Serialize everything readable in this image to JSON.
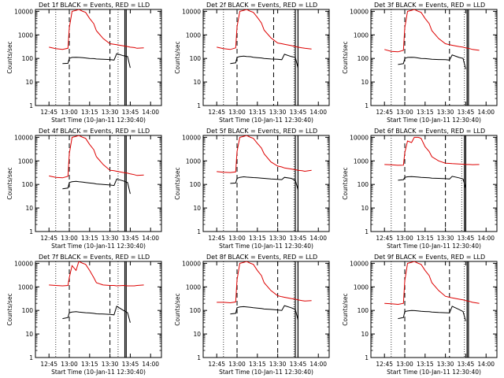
{
  "figure": {
    "start_time_label": "Start Time (10-Jan-11 12:30:40)",
    "ylabel": "Counts/sec",
    "colors": {
      "events": "#000000",
      "lld": "#dd0000",
      "axes": "#000000",
      "background": "#ffffff"
    }
  },
  "chart_data": [
    {
      "type": "line",
      "title": "Det 1f BLACK = Events, RED = LLD",
      "x": [
        "12:45",
        "12:50",
        "12:55",
        "12:59",
        "13:00",
        "13:02",
        "13:05",
        "13:07",
        "13:10",
        "13:12",
        "13:15",
        "13:18",
        "13:20",
        "13:25",
        "13:30",
        "13:33",
        "13:35",
        "13:40",
        "13:43",
        "13:45",
        "13:48",
        "13:50",
        "13:55"
      ],
      "x_ticks": [
        "12:45",
        "13:00",
        "13:15",
        "13:30",
        "13:45",
        "14:00"
      ],
      "xlabel": "Start Time (10-Jan-11 12:30:40)",
      "ylabel": "Counts/sec",
      "ylim": [
        1,
        10000
      ],
      "yscale": "log",
      "y_ticks": [
        "1",
        "10",
        "100",
        "1000",
        "10000"
      ],
      "vlines": {
        "dotted": [
          "12:50",
          "13:36"
        ],
        "dashed": [
          "13:00",
          "13:30"
        ],
        "solid": [
          "13:41",
          "13:42"
        ]
      },
      "series": [
        {
          "name": "Events",
          "color": "#000000",
          "values": [
            null,
            null,
            60,
            62,
            100,
            110,
            112,
            110,
            108,
            105,
            100,
            98,
            95,
            92,
            90,
            85,
            160,
            130,
            120,
            40,
            null,
            null,
            null
          ]
        },
        {
          "name": "LLD",
          "color": "#dd0000",
          "values": [
            300,
            260,
            240,
            270,
            2000,
            10000,
            11000,
            12000,
            10000,
            9000,
            5000,
            3000,
            1500,
            700,
            420,
            400,
            380,
            340,
            320,
            300,
            290,
            270,
            280
          ]
        }
      ]
    },
    {
      "type": "line",
      "title": "Det 2f BLACK = Events, RED = LLD",
      "x": [
        "12:45",
        "12:50",
        "12:55",
        "12:59",
        "13:00",
        "13:02",
        "13:05",
        "13:07",
        "13:10",
        "13:12",
        "13:15",
        "13:18",
        "13:20",
        "13:25",
        "13:30",
        "13:33",
        "13:35",
        "13:40",
        "13:43",
        "13:45",
        "13:48",
        "13:50",
        "13:55"
      ],
      "x_ticks": [
        "12:45",
        "13:00",
        "13:15",
        "13:30",
        "13:45",
        "14:00"
      ],
      "xlabel": "Start Time (10-Jan-11 12:30:40)",
      "ylabel": "Counts/sec",
      "ylim": [
        1,
        10000
      ],
      "yscale": "log",
      "y_ticks": [
        "1",
        "10",
        "100",
        "1000",
        "10000"
      ],
      "vlines": {
        "dotted": [
          "12:50",
          "13:42"
        ],
        "dashed": [
          "13:00",
          "13:27"
        ],
        "solid": [
          "13:43",
          "13:45"
        ]
      },
      "series": [
        {
          "name": "Events",
          "color": "#000000",
          "values": [
            null,
            null,
            60,
            65,
            110,
            120,
            125,
            120,
            118,
            112,
            108,
            105,
            100,
            95,
            92,
            88,
            150,
            120,
            110,
            40,
            null,
            null,
            null
          ]
        },
        {
          "name": "LLD",
          "color": "#dd0000",
          "values": [
            300,
            260,
            240,
            280,
            2200,
            10000,
            11000,
            12000,
            10000,
            9000,
            5500,
            3200,
            1600,
            750,
            450,
            420,
            400,
            350,
            320,
            300,
            280,
            270,
            250
          ]
        }
      ]
    },
    {
      "type": "line",
      "title": "Det 3f BLACK = Events, RED = LLD",
      "x": [
        "12:45",
        "12:50",
        "12:55",
        "12:59",
        "13:00",
        "13:02",
        "13:05",
        "13:07",
        "13:10",
        "13:12",
        "13:15",
        "13:18",
        "13:20",
        "13:25",
        "13:30",
        "13:33",
        "13:35",
        "13:40",
        "13:43",
        "13:45",
        "13:48",
        "13:50",
        "13:55"
      ],
      "x_ticks": [
        "12:45",
        "13:00",
        "13:15",
        "13:30",
        "13:45",
        "14:00"
      ],
      "xlabel": "Start Time (10-Jan-11 12:30:40)",
      "ylabel": "Counts/sec",
      "ylim": [
        1,
        10000
      ],
      "yscale": "log",
      "y_ticks": [
        "1",
        "10",
        "100",
        "1000",
        "10000"
      ],
      "vlines": {
        "dotted": [
          "12:50",
          "13:44"
        ],
        "dashed": [
          "13:00",
          "13:33"
        ],
        "solid": [
          "13:46",
          "13:47"
        ]
      },
      "series": [
        {
          "name": "Events",
          "color": "#000000",
          "values": [
            null,
            null,
            55,
            60,
            100,
            110,
            112,
            110,
            105,
            100,
            98,
            95,
            92,
            90,
            88,
            85,
            140,
            110,
            100,
            35,
            null,
            null,
            null
          ]
        },
        {
          "name": "LLD",
          "color": "#dd0000",
          "values": [
            240,
            200,
            190,
            220,
            2000,
            10000,
            11000,
            12000,
            10000,
            9000,
            5000,
            3000,
            1500,
            700,
            420,
            380,
            360,
            320,
            300,
            280,
            260,
            240,
            220
          ]
        }
      ]
    },
    {
      "type": "line",
      "title": "Det 4f BLACK = Events, RED = LLD",
      "x": [
        "12:45",
        "12:50",
        "12:55",
        "12:59",
        "13:00",
        "13:02",
        "13:05",
        "13:07",
        "13:10",
        "13:12",
        "13:15",
        "13:18",
        "13:20",
        "13:25",
        "13:30",
        "13:33",
        "13:35",
        "13:40",
        "13:43",
        "13:45",
        "13:48",
        "13:50",
        "13:55"
      ],
      "x_ticks": [
        "12:45",
        "13:00",
        "13:15",
        "13:30",
        "13:45",
        "14:00"
      ],
      "xlabel": "Start Time (10-Jan-11 12:30:40)",
      "ylabel": "Counts/sec",
      "ylim": [
        1,
        10000
      ],
      "yscale": "log",
      "y_ticks": [
        "1",
        "10",
        "100",
        "1000",
        "10000"
      ],
      "vlines": {
        "dotted": [
          "12:50",
          "13:36"
        ],
        "dashed": [
          "13:00",
          "13:30"
        ],
        "solid": [
          "13:41",
          "13:42"
        ]
      },
      "series": [
        {
          "name": "Events",
          "color": "#000000",
          "values": [
            null,
            null,
            65,
            70,
            120,
            130,
            135,
            130,
            125,
            120,
            115,
            110,
            105,
            100,
            95,
            90,
            170,
            140,
            120,
            40,
            null,
            null,
            null
          ]
        },
        {
          "name": "LLD",
          "color": "#dd0000",
          "values": [
            230,
            200,
            190,
            220,
            2000,
            10000,
            11000,
            12000,
            10000,
            9000,
            5000,
            3000,
            1500,
            700,
            400,
            380,
            360,
            320,
            300,
            280,
            260,
            240,
            250
          ]
        }
      ]
    },
    {
      "type": "line",
      "title": "Det 5f BLACK = Events, RED = LLD",
      "x": [
        "12:45",
        "12:50",
        "12:55",
        "12:59",
        "13:00",
        "13:02",
        "13:05",
        "13:07",
        "13:10",
        "13:12",
        "13:15",
        "13:18",
        "13:20",
        "13:25",
        "13:30",
        "13:33",
        "13:35",
        "13:40",
        "13:43",
        "13:45",
        "13:48",
        "13:50",
        "13:55"
      ],
      "x_ticks": [
        "12:45",
        "13:00",
        "13:15",
        "13:30",
        "13:45",
        "14:00"
      ],
      "xlabel": "Start Time (10-Jan-11 12:30:40)",
      "ylabel": "Counts/sec",
      "ylim": [
        1,
        10000
      ],
      "yscale": "log",
      "y_ticks": [
        "1",
        "10",
        "100",
        "1000",
        "10000"
      ],
      "vlines": {
        "dotted": [
          "12:50",
          "13:42"
        ],
        "dashed": [
          "13:00",
          "13:30"
        ],
        "solid": [
          "13:43",
          "13:45"
        ]
      },
      "series": [
        {
          "name": "Events",
          "color": "#000000",
          "values": [
            null,
            null,
            110,
            115,
            180,
            200,
            210,
            205,
            200,
            195,
            190,
            185,
            180,
            170,
            165,
            160,
            200,
            180,
            150,
            60,
            null,
            null,
            null
          ]
        },
        {
          "name": "LLD",
          "color": "#dd0000",
          "values": [
            350,
            330,
            320,
            340,
            2500,
            10000,
            11000,
            12000,
            10000,
            9000,
            5500,
            3500,
            2000,
            900,
            600,
            550,
            500,
            450,
            420,
            400,
            380,
            360,
            400
          ]
        }
      ]
    },
    {
      "type": "line",
      "title": "Det 6f BLACK = Events, RED = LLD",
      "x": [
        "12:45",
        "12:50",
        "12:55",
        "12:59",
        "13:00",
        "13:02",
        "13:05",
        "13:07",
        "13:10",
        "13:12",
        "13:15",
        "13:18",
        "13:20",
        "13:25",
        "13:30",
        "13:33",
        "13:35",
        "13:40",
        "13:43",
        "13:45",
        "13:48",
        "13:50",
        "13:55"
      ],
      "x_ticks": [
        "12:45",
        "13:00",
        "13:15",
        "13:30",
        "13:45",
        "14:00"
      ],
      "xlabel": "Start Time (10-Jan-11 12:30:40)",
      "ylabel": "Counts/sec",
      "ylim": [
        1,
        10000
      ],
      "yscale": "log",
      "y_ticks": [
        "1",
        "10",
        "100",
        "1000",
        "10000"
      ],
      "vlines": {
        "dotted": [
          "12:50",
          "13:42"
        ],
        "dashed": [
          "13:00",
          "13:30"
        ],
        "solid": [
          "13:44",
          "13:45"
        ]
      },
      "series": [
        {
          "name": "Events",
          "color": "#000000",
          "values": [
            null,
            null,
            150,
            160,
            200,
            210,
            215,
            210,
            205,
            200,
            195,
            190,
            185,
            180,
            175,
            170,
            220,
            190,
            170,
            70,
            null,
            null,
            null
          ]
        },
        {
          "name": "LLD",
          "color": "#dd0000",
          "values": [
            700,
            680,
            650,
            660,
            2200,
            7000,
            6000,
            10000,
            10000,
            9000,
            4000,
            2500,
            1500,
            1000,
            800,
            780,
            760,
            740,
            720,
            700,
            700,
            690,
            700
          ]
        }
      ]
    },
    {
      "type": "line",
      "title": "Det 7f BLACK = Events, RED = LLD",
      "x": [
        "12:45",
        "12:50",
        "12:55",
        "12:59",
        "13:00",
        "13:02",
        "13:05",
        "13:07",
        "13:10",
        "13:12",
        "13:15",
        "13:18",
        "13:20",
        "13:25",
        "13:30",
        "13:33",
        "13:35",
        "13:40",
        "13:43",
        "13:45",
        "13:48",
        "13:50",
        "13:55"
      ],
      "x_ticks": [
        "12:45",
        "13:00",
        "13:15",
        "13:30",
        "13:45",
        "14:00"
      ],
      "xlabel": "Start Time (10-Jan-11 12:30:40)",
      "ylabel": "Counts/sec",
      "ylim": [
        1,
        10000
      ],
      "yscale": "log",
      "y_ticks": [
        "1",
        "10",
        "100",
        "1000",
        "10000"
      ],
      "vlines": {
        "dotted": [
          "12:50",
          "13:36"
        ],
        "dashed": [
          "13:00",
          "13:30"
        ],
        "solid": [
          "13:41",
          "13:42"
        ]
      },
      "series": [
        {
          "name": "Events",
          "color": "#000000",
          "values": [
            null,
            null,
            45,
            50,
            80,
            85,
            88,
            85,
            82,
            80,
            78,
            75,
            72,
            70,
            68,
            65,
            150,
            100,
            80,
            30,
            null,
            null,
            null
          ]
        },
        {
          "name": "LLD",
          "color": "#dd0000",
          "values": [
            1200,
            1150,
            1100,
            1150,
            2500,
            8000,
            5000,
            12000,
            10000,
            9000,
            5000,
            2500,
            1500,
            1200,
            1150,
            1150,
            1100,
            1150,
            1100,
            1100,
            1100,
            1150,
            1200
          ]
        }
      ]
    },
    {
      "type": "line",
      "title": "Det 8f BLACK = Events, RED = LLD",
      "x": [
        "12:45",
        "12:50",
        "12:55",
        "12:59",
        "13:00",
        "13:02",
        "13:05",
        "13:07",
        "13:10",
        "13:12",
        "13:15",
        "13:18",
        "13:20",
        "13:25",
        "13:30",
        "13:33",
        "13:35",
        "13:40",
        "13:43",
        "13:45",
        "13:48",
        "13:50",
        "13:55"
      ],
      "x_ticks": [
        "12:45",
        "13:00",
        "13:15",
        "13:30",
        "13:45",
        "14:00"
      ],
      "xlabel": "Start Time (10-Jan-11 12:30:40)",
      "ylabel": "Counts/sec",
      "ylim": [
        1,
        10000
      ],
      "yscale": "log",
      "y_ticks": [
        "1",
        "10",
        "100",
        "1000",
        "10000"
      ],
      "vlines": {
        "dotted": [
          "12:50",
          "13:42"
        ],
        "dashed": [
          "13:00",
          "13:30"
        ],
        "solid": [
          "13:43",
          "13:45"
        ]
      },
      "series": [
        {
          "name": "Events",
          "color": "#000000",
          "values": [
            null,
            null,
            70,
            75,
            130,
            140,
            145,
            140,
            135,
            130,
            125,
            120,
            115,
            110,
            105,
            100,
            160,
            130,
            110,
            40,
            null,
            null,
            null
          ]
        },
        {
          "name": "LLD",
          "color": "#dd0000",
          "values": [
            220,
            220,
            210,
            230,
            2000,
            10000,
            11000,
            12000,
            10000,
            9000,
            5000,
            3000,
            1500,
            700,
            420,
            380,
            360,
            320,
            300,
            280,
            260,
            250,
            260
          ]
        }
      ]
    },
    {
      "type": "line",
      "title": "Det 9f BLACK = Events, RED = LLD",
      "x": [
        "12:45",
        "12:50",
        "12:55",
        "12:59",
        "13:00",
        "13:02",
        "13:05",
        "13:07",
        "13:10",
        "13:12",
        "13:15",
        "13:18",
        "13:20",
        "13:25",
        "13:30",
        "13:33",
        "13:35",
        "13:40",
        "13:43",
        "13:45",
        "13:48",
        "13:50",
        "13:55"
      ],
      "x_ticks": [
        "12:45",
        "13:00",
        "13:15",
        "13:30",
        "13:45",
        "14:00"
      ],
      "xlabel": "Start Time (10-Jan-11 12:30:40)",
      "ylabel": "Counts/sec",
      "ylim": [
        1,
        10000
      ],
      "yscale": "log",
      "y_ticks": [
        "1",
        "10",
        "100",
        "1000",
        "10000"
      ],
      "vlines": {
        "dotted": [
          "12:50",
          "13:44"
        ],
        "dashed": [
          "13:00",
          "13:33"
        ],
        "solid": [
          "13:46",
          "13:47"
        ]
      },
      "series": [
        {
          "name": "Events",
          "color": "#000000",
          "values": [
            null,
            null,
            45,
            50,
            90,
            95,
            100,
            98,
            95,
            92,
            90,
            88,
            85,
            82,
            80,
            78,
            150,
            110,
            90,
            35,
            null,
            null,
            null
          ]
        },
        {
          "name": "LLD",
          "color": "#dd0000",
          "values": [
            200,
            190,
            180,
            200,
            1800,
            10000,
            11000,
            12000,
            10000,
            9000,
            5000,
            3000,
            1500,
            700,
            400,
            360,
            340,
            300,
            280,
            260,
            240,
            220,
            200
          ]
        }
      ]
    }
  ]
}
